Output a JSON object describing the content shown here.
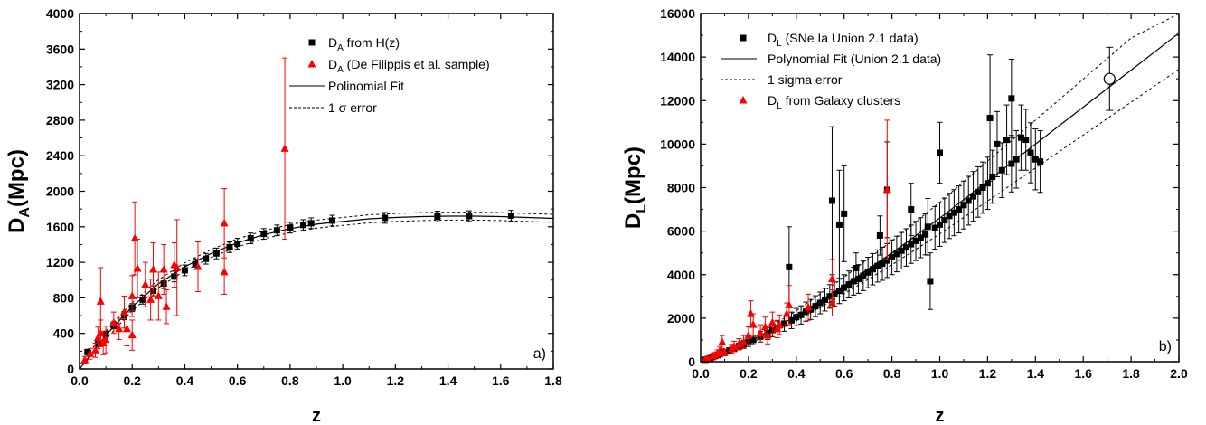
{
  "chart_data": [
    {
      "type": "scatter",
      "panel_label": "a)",
      "xlabel": "z",
      "ylabel": "D",
      "ylabel_sub": "A",
      "ylabel_unit": "(Mpc)",
      "xlim": [
        0,
        1.8
      ],
      "ylim": [
        0,
        4000
      ],
      "xticks": [
        "0.0",
        "0.2",
        "0.4",
        "0.6",
        "0.8",
        "1.0",
        "1.2",
        "1.4",
        "1.6",
        "1.8"
      ],
      "yticks": [
        "0",
        "400",
        "800",
        "1200",
        "1600",
        "2000",
        "2400",
        "2800",
        "3200",
        "3600",
        "4000"
      ],
      "legend": [
        {
          "pre": "D",
          "sub": "A",
          "post": " from H(z)",
          "marker": "square",
          "color": "#000000"
        },
        {
          "pre": "D",
          "sub": "A",
          "post": " (De Filippis et al. sample)",
          "marker": "triangle",
          "color": "#ff0000"
        },
        {
          "text": "Polinomial Fit",
          "marker": "line",
          "color": "#000000"
        },
        {
          "text": "1 σ error",
          "marker": "dash",
          "color": "#000000"
        }
      ],
      "series": [
        {
          "name": "D_A from H(z)",
          "color": "#000000",
          "marker": "square",
          "points": [
            [
              0.03,
              190,
              25
            ],
            [
              0.07,
              285,
              30
            ],
            [
              0.1,
              390,
              35
            ],
            [
              0.13,
              490,
              40
            ],
            [
              0.17,
              600,
              45
            ],
            [
              0.2,
              690,
              45
            ],
            [
              0.24,
              780,
              50
            ],
            [
              0.28,
              880,
              55
            ],
            [
              0.32,
              960,
              55
            ],
            [
              0.36,
              1040,
              60
            ],
            [
              0.4,
              1110,
              60
            ],
            [
              0.44,
              1180,
              60
            ],
            [
              0.48,
              1240,
              60
            ],
            [
              0.52,
              1300,
              60
            ],
            [
              0.57,
              1370,
              60
            ],
            [
              0.6,
              1410,
              60
            ],
            [
              0.65,
              1470,
              60
            ],
            [
              0.7,
              1520,
              60
            ],
            [
              0.75,
              1560,
              60
            ],
            [
              0.8,
              1590,
              60
            ],
            [
              0.85,
              1620,
              60
            ],
            [
              0.88,
              1640,
              60
            ],
            [
              0.96,
              1670,
              60
            ],
            [
              1.16,
              1700,
              60
            ],
            [
              1.36,
              1715,
              60
            ],
            [
              1.48,
              1720,
              60
            ],
            [
              1.64,
              1725,
              60
            ]
          ]
        },
        {
          "name": "D_A (De Filippis et al. sample)",
          "color": "#ff0000",
          "marker": "triangle",
          "points": [
            [
              0.02,
              100,
              40
            ],
            [
              0.04,
              170,
              60
            ],
            [
              0.06,
              210,
              80
            ],
            [
              0.07,
              350,
              120
            ],
            [
              0.08,
              400,
              150
            ],
            [
              0.08,
              760,
              380
            ],
            [
              0.09,
              290,
              130
            ],
            [
              0.1,
              330,
              150
            ],
            [
              0.13,
              520,
              120
            ],
            [
              0.15,
              450,
              120
            ],
            [
              0.17,
              640,
              180
            ],
            [
              0.18,
              450,
              190
            ],
            [
              0.2,
              820,
              230
            ],
            [
              0.2,
              380,
              170
            ],
            [
              0.21,
              1470,
              410
            ],
            [
              0.22,
              1130,
              330
            ],
            [
              0.25,
              950,
              250
            ],
            [
              0.27,
              780,
              230
            ],
            [
              0.28,
              1120,
              300
            ],
            [
              0.3,
              820,
              270
            ],
            [
              0.32,
              1120,
              280
            ],
            [
              0.33,
              700,
              190
            ],
            [
              0.36,
              1170,
              250
            ],
            [
              0.37,
              1140,
              540
            ],
            [
              0.45,
              1150,
              280
            ],
            [
              0.55,
              1640,
              390
            ],
            [
              0.55,
              1090,
              250
            ],
            [
              0.78,
              2480,
              1020
            ]
          ]
        }
      ],
      "fit": [
        [
          0.0,
          0
        ],
        [
          0.1,
          380
        ],
        [
          0.2,
          700
        ],
        [
          0.3,
          960
        ],
        [
          0.4,
          1150
        ],
        [
          0.5,
          1300
        ],
        [
          0.6,
          1420
        ],
        [
          0.7,
          1510
        ],
        [
          0.8,
          1580
        ],
        [
          0.9,
          1630
        ],
        [
          1.0,
          1660
        ],
        [
          1.1,
          1690
        ],
        [
          1.2,
          1705
        ],
        [
          1.3,
          1715
        ],
        [
          1.4,
          1720
        ],
        [
          1.5,
          1720
        ],
        [
          1.6,
          1715
        ],
        [
          1.7,
          1705
        ],
        [
          1.8,
          1695
        ]
      ],
      "fit_band": 45
    },
    {
      "type": "scatter",
      "panel_label": "b)",
      "xlabel": "z",
      "ylabel": "D",
      "ylabel_sub": "L",
      "ylabel_unit": "(Mpc)",
      "xlim": [
        0,
        2.0
      ],
      "ylim": [
        0,
        16000
      ],
      "xticks": [
        "0.0",
        "0.2",
        "0.4",
        "0.6",
        "0.8",
        "1.0",
        "1.2",
        "1.4",
        "1.6",
        "1.8",
        "2.0"
      ],
      "yticks": [
        "0",
        "2000",
        "4000",
        "6000",
        "8000",
        "10000",
        "12000",
        "14000",
        "16000"
      ],
      "legend": [
        {
          "pre": "D",
          "sub": "L",
          "post": "  (SNe Ia Union 2.1 data)",
          "marker": "square",
          "color": "#000000"
        },
        {
          "text": "Polynomial Fit (Union 2.1 data)",
          "marker": "line",
          "color": "#000000"
        },
        {
          "text": "1 sigma error",
          "marker": "dash",
          "color": "#000000"
        },
        {
          "pre": "D",
          "sub": "L",
          "post": " from Galaxy clusters",
          "marker": "triangle",
          "color": "#ff0000",
          "text_color": "#ff0000"
        }
      ],
      "series": [
        {
          "name": "D_L (SNe Ia Union 2.1 data)",
          "color": "#000000",
          "marker": "square",
          "points": [
            [
              0.02,
              90,
              30
            ],
            [
              0.03,
              120,
              40
            ],
            [
              0.04,
              160,
              50
            ],
            [
              0.05,
              210,
              60
            ],
            [
              0.06,
              260,
              70
            ],
            [
              0.07,
              300,
              80
            ],
            [
              0.08,
              350,
              90
            ],
            [
              0.1,
              430,
              100
            ],
            [
              0.12,
              520,
              120
            ],
            [
              0.14,
              600,
              140
            ],
            [
              0.16,
              700,
              160
            ],
            [
              0.18,
              800,
              180
            ],
            [
              0.2,
              900,
              200
            ],
            [
              0.22,
              1000,
              220
            ],
            [
              0.25,
              1150,
              250
            ],
            [
              0.28,
              1300,
              280
            ],
            [
              0.3,
              1450,
              300
            ],
            [
              0.32,
              1550,
              320
            ],
            [
              0.35,
              1750,
              350
            ],
            [
              0.37,
              4350,
              1850
            ],
            [
              0.38,
              1900,
              380
            ],
            [
              0.4,
              2050,
              400
            ],
            [
              0.42,
              2150,
              420
            ],
            [
              0.44,
              2300,
              440
            ],
            [
              0.46,
              2400,
              460
            ],
            [
              0.48,
              2550,
              480
            ],
            [
              0.5,
              2700,
              500
            ],
            [
              0.52,
              2850,
              520
            ],
            [
              0.54,
              3000,
              540
            ],
            [
              0.55,
              7400,
              3400
            ],
            [
              0.56,
              3100,
              560
            ],
            [
              0.58,
              3250,
              580
            ],
            [
              0.58,
              6300,
              2500
            ],
            [
              0.6,
              3400,
              600
            ],
            [
              0.6,
              6800,
              2200
            ],
            [
              0.62,
              3550,
              620
            ],
            [
              0.64,
              3700,
              640
            ],
            [
              0.65,
              4300,
              700
            ],
            [
              0.66,
              3800,
              660
            ],
            [
              0.68,
              3950,
              680
            ],
            [
              0.7,
              4100,
              700
            ],
            [
              0.72,
              4250,
              720
            ],
            [
              0.74,
              4400,
              740
            ],
            [
              0.75,
              5800,
              900
            ],
            [
              0.76,
              4500,
              760
            ],
            [
              0.78,
              4650,
              780
            ],
            [
              0.78,
              7900,
              2200
            ],
            [
              0.8,
              4800,
              800
            ],
            [
              0.82,
              4950,
              820
            ],
            [
              0.84,
              5100,
              840
            ],
            [
              0.86,
              5250,
              860
            ],
            [
              0.88,
              5400,
              880
            ],
            [
              0.88,
              7000,
              1200
            ],
            [
              0.9,
              5550,
              900
            ],
            [
              0.92,
              5700,
              920
            ],
            [
              0.94,
              5850,
              940
            ],
            [
              0.95,
              6200,
              1300
            ],
            [
              0.96,
              3700,
              1300
            ],
            [
              0.98,
              6150,
              980
            ],
            [
              1.0,
              9600,
              1400
            ],
            [
              1.0,
              6300,
              1000
            ],
            [
              1.02,
              6500,
              1020
            ],
            [
              1.04,
              6700,
              1040
            ],
            [
              1.06,
              6850,
              1060
            ],
            [
              1.08,
              7000,
              1080
            ],
            [
              1.1,
              7200,
              1100
            ],
            [
              1.12,
              7400,
              1120
            ],
            [
              1.14,
              7600,
              1140
            ],
            [
              1.16,
              7800,
              1160
            ],
            [
              1.18,
              8000,
              1180
            ],
            [
              1.2,
              8200,
              1200
            ],
            [
              1.21,
              11200,
              2900
            ],
            [
              1.22,
              8500,
              1220
            ],
            [
              1.24,
              10000,
              1500
            ],
            [
              1.26,
              8800,
              1260
            ],
            [
              1.28,
              10200,
              1600
            ],
            [
              1.3,
              12100,
              1800
            ],
            [
              1.3,
              9100,
              1300
            ],
            [
              1.32,
              9300,
              1320
            ],
            [
              1.34,
              10300,
              1500
            ],
            [
              1.36,
              10200,
              1400
            ],
            [
              1.38,
              9600,
              1380
            ],
            [
              1.4,
              9300,
              1400
            ],
            [
              1.42,
              9200,
              1420
            ]
          ]
        },
        {
          "name": "D_L from Galaxy clusters",
          "color": "#ff0000",
          "marker": "triangle",
          "points": [
            [
              0.02,
              100,
              50
            ],
            [
              0.03,
              140,
              60
            ],
            [
              0.05,
              250,
              100
            ],
            [
              0.06,
              300,
              120
            ],
            [
              0.07,
              380,
              160
            ],
            [
              0.08,
              500,
              200
            ],
            [
              0.09,
              900,
              300
            ],
            [
              0.1,
              420,
              150
            ],
            [
              0.13,
              600,
              200
            ],
            [
              0.14,
              700,
              240
            ],
            [
              0.16,
              800,
              260
            ],
            [
              0.18,
              900,
              300
            ],
            [
              0.2,
              1200,
              400
            ],
            [
              0.21,
              2200,
              600
            ],
            [
              0.22,
              1700,
              500
            ],
            [
              0.25,
              1300,
              400
            ],
            [
              0.27,
              1600,
              450
            ],
            [
              0.28,
              1200,
              380
            ],
            [
              0.3,
              1800,
              480
            ],
            [
              0.32,
              1500,
              400
            ],
            [
              0.33,
              1700,
              450
            ],
            [
              0.36,
              2200,
              500
            ],
            [
              0.37,
              2600,
              900
            ],
            [
              0.45,
              2500,
              600
            ],
            [
              0.55,
              3800,
              900
            ],
            [
              0.55,
              2700,
              600
            ],
            [
              0.78,
              7900,
              3200
            ]
          ]
        }
      ],
      "fit": [
        [
          0.0,
          0
        ],
        [
          0.2,
          900
        ],
        [
          0.4,
          2100
        ],
        [
          0.6,
          3500
        ],
        [
          0.8,
          5000
        ],
        [
          1.0,
          6600
        ],
        [
          1.2,
          8300
        ],
        [
          1.4,
          10000
        ],
        [
          1.6,
          11700
        ],
        [
          1.8,
          13400
        ],
        [
          2.0,
          15100
        ]
      ],
      "fit_band_frac": 0.11,
      "extra_point": {
        "x": 1.71,
        "y": 13000,
        "err": 1450
      }
    }
  ]
}
